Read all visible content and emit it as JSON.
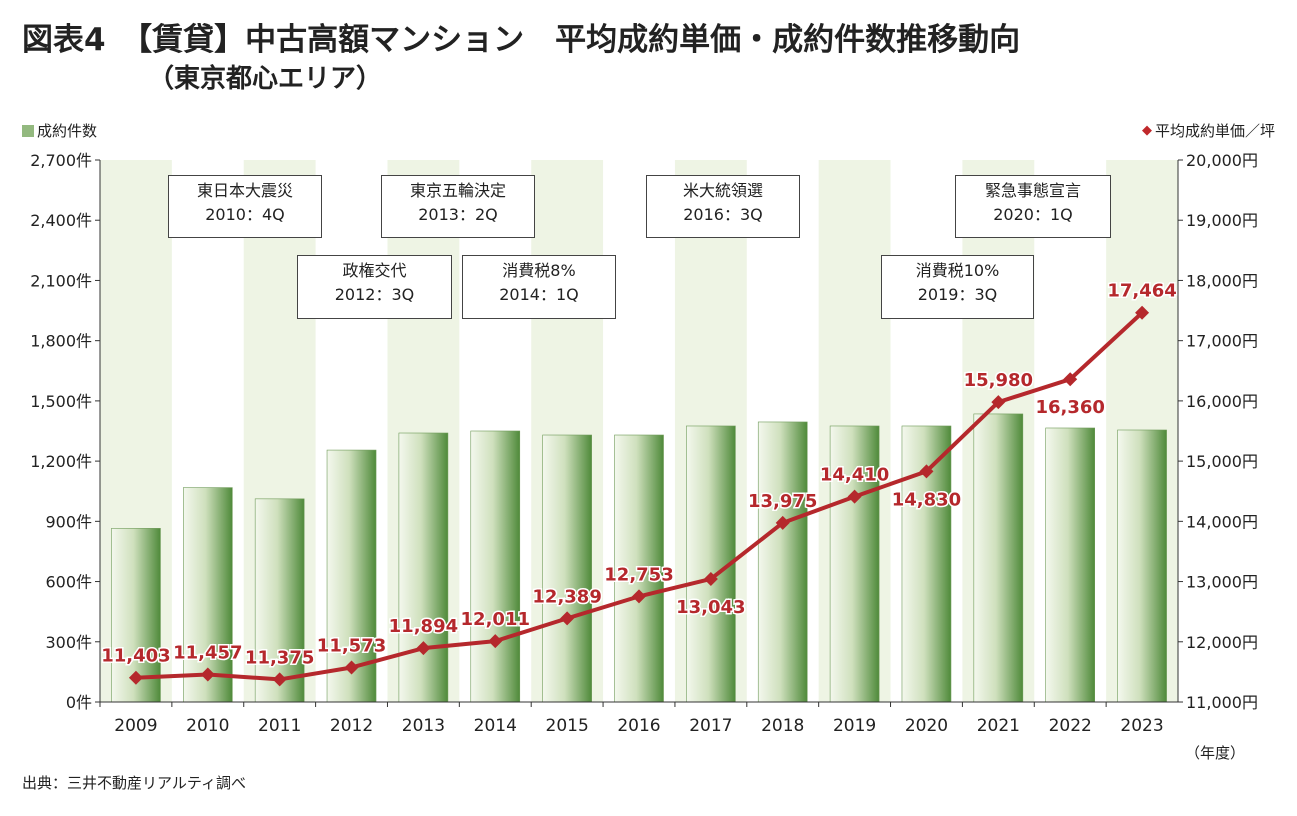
{
  "header": {
    "title": "図表4　【賃貸】中古高額マンション　平均成約単価・成約件数推移動向",
    "subtitle": "（東京都心エリア）"
  },
  "legend": {
    "bar_label": "成約件数",
    "line_label": "平均成約単価／坪"
  },
  "unit_note": "（年度）",
  "source": "出典：三井不動産リアルティ調べ",
  "colors": {
    "bar": "#8fb77a",
    "line": "#b5282c",
    "label": "#b5282c",
    "band": "#eef4e4"
  },
  "events": [
    {
      "name": "東日本大震災",
      "period": "2010：4Q"
    },
    {
      "name": "東京五輪決定",
      "period": "2013：2Q"
    },
    {
      "name": "米大統領選",
      "period": "2016：3Q"
    },
    {
      "name": "緊急事態宣言",
      "period": "2020：1Q"
    },
    {
      "name": "政権交代",
      "period": "2012：3Q"
    },
    {
      "name": "消費税8%",
      "period": "2014：1Q"
    },
    {
      "name": "消費税10%",
      "period": "2019：3Q"
    }
  ],
  "chart_data": {
    "type": "bar+line",
    "categories": [
      "2009",
      "2010",
      "2011",
      "2012",
      "2013",
      "2014",
      "2015",
      "2016",
      "2017",
      "2018",
      "2019",
      "2020",
      "2021",
      "2022",
      "2023"
    ],
    "series": [
      {
        "name": "成約件数",
        "type": "bar",
        "axis": "left",
        "values": [
          865,
          1068,
          1012,
          1255,
          1340,
          1350,
          1330,
          1330,
          1375,
          1395,
          1375,
          1375,
          1435,
          1365,
          1355
        ]
      },
      {
        "name": "平均成約単価／坪",
        "type": "line",
        "axis": "right",
        "values": [
          11403,
          11457,
          11375,
          11573,
          11894,
          12011,
          12389,
          12753,
          13043,
          13975,
          14410,
          14830,
          15980,
          16360,
          17464
        ]
      }
    ],
    "data_labels": [
      "11,403",
      "11,457",
      "11,375",
      "11,573",
      "11,894",
      "12,011",
      "12,389",
      "12,753",
      "13,043",
      "13,975",
      "14,410",
      "14,830",
      "15,980",
      "16,360",
      "17,464"
    ],
    "y_left": {
      "min": 0,
      "max": 2700,
      "step": 300,
      "tick_labels": [
        "0件",
        "300件",
        "600件",
        "900件",
        "1,200件",
        "1,500件",
        "1,800件",
        "2,100件",
        "2,400件",
        "2,700件"
      ]
    },
    "y_right": {
      "min": 11000,
      "max": 20000,
      "step": 1000,
      "tick_labels": [
        "11,000円",
        "12,000円",
        "13,000円",
        "14,000円",
        "15,000円",
        "16,000円",
        "17,000円",
        "18,000円",
        "19,000円",
        "20,000円"
      ]
    },
    "grid": false,
    "legend_position": "top"
  }
}
